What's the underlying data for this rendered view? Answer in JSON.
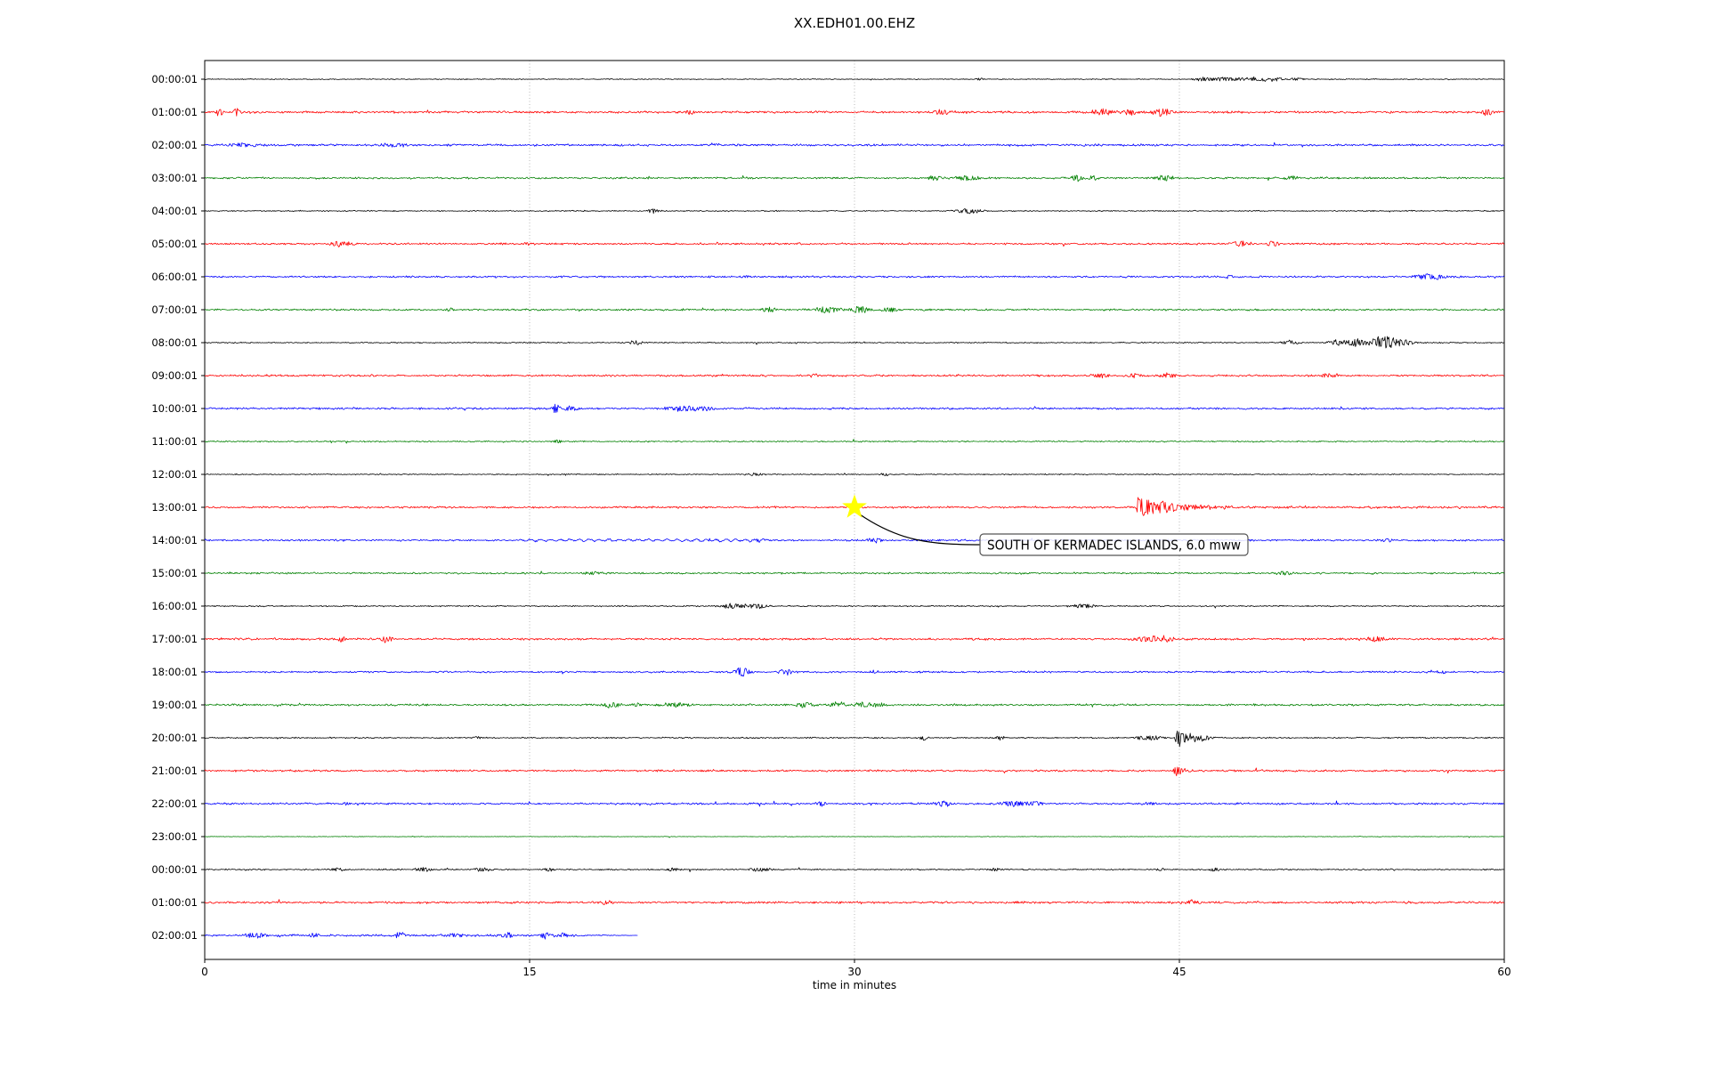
{
  "chart_data": {
    "type": "line",
    "subtype": "seismic-helicorder-dayplot",
    "title": "XX.EDH01.00.EHZ",
    "xlabel": "time in minutes",
    "xlim": [
      0,
      60
    ],
    "x_ticks": [
      0,
      15,
      30,
      45,
      60
    ],
    "grid_minutes": [
      15,
      30,
      45
    ],
    "grid_color": "#b0b0b0",
    "trace_color_cycle": [
      "#000000",
      "#ff0000",
      "#0000ff",
      "#008000"
    ],
    "rows": [
      {
        "label": "00:00:01",
        "color": "#000000",
        "amp": 0.7,
        "events": [
          {
            "t": 35.8,
            "a": 1.5,
            "w": 0.15
          },
          {
            "t": 46.0,
            "a": 1.8,
            "w": 0.3
          },
          {
            "t": 47.2,
            "a": 2.2,
            "w": 0.7
          },
          {
            "t": 48.6,
            "a": 2.2,
            "w": 0.5
          },
          {
            "t": 49.4,
            "a": 1.8,
            "w": 0.3
          },
          {
            "t": 50.4,
            "a": 1.8,
            "w": 0.25
          }
        ]
      },
      {
        "label": "01:00:01",
        "color": "#ff0000",
        "amp": 1.7,
        "events": [
          {
            "t": 0.65,
            "a": 5,
            "w": 0.12
          },
          {
            "t": 1.5,
            "a": 4.5,
            "w": 0.12
          },
          {
            "t": 22.4,
            "a": 2.5,
            "w": 0.15
          },
          {
            "t": 34.0,
            "a": 2.5,
            "w": 0.25
          },
          {
            "t": 41.5,
            "a": 3.5,
            "w": 0.4
          },
          {
            "t": 42.7,
            "a": 3,
            "w": 0.25
          },
          {
            "t": 44.2,
            "a": 4.5,
            "w": 0.35
          },
          {
            "t": 59.2,
            "a": 4,
            "w": 0.2
          }
        ]
      },
      {
        "label": "02:00:01",
        "color": "#0000ff",
        "amp": 1.6,
        "events": [
          {
            "t": 1.8,
            "a": 2.2,
            "w": 0.5
          },
          {
            "t": 8.8,
            "a": 2,
            "w": 0.4
          },
          {
            "t": 23.5,
            "a": 1.8,
            "w": 0.2
          }
        ]
      },
      {
        "label": "03:00:01",
        "color": "#008000",
        "amp": 1.4,
        "events": [
          {
            "t": 33.7,
            "a": 3,
            "w": 0.25
          },
          {
            "t": 35.2,
            "a": 3,
            "w": 0.4
          },
          {
            "t": 40.3,
            "a": 3.5,
            "w": 0.2
          },
          {
            "t": 41.0,
            "a": 3,
            "w": 0.15
          },
          {
            "t": 44.3,
            "a": 3.5,
            "w": 0.3
          },
          {
            "t": 50.2,
            "a": 2,
            "w": 0.2
          }
        ]
      },
      {
        "label": "04:00:01",
        "color": "#000000",
        "amp": 0.9,
        "events": [
          {
            "t": 20.7,
            "a": 2.5,
            "w": 0.2
          },
          {
            "t": 35.3,
            "a": 2.8,
            "w": 0.45
          }
        ]
      },
      {
        "label": "05:00:01",
        "color": "#ff0000",
        "amp": 1.4,
        "events": [
          {
            "t": 6.3,
            "a": 2.8,
            "w": 0.35
          },
          {
            "t": 14.9,
            "a": 2,
            "w": 0.15
          },
          {
            "t": 47.8,
            "a": 2.8,
            "w": 0.35
          },
          {
            "t": 49.3,
            "a": 3,
            "w": 0.2
          }
        ]
      },
      {
        "label": "06:00:01",
        "color": "#0000ff",
        "amp": 1.4,
        "events": [
          {
            "t": 24.9,
            "a": 2,
            "w": 0.15
          },
          {
            "t": 47.3,
            "a": 2,
            "w": 0.15
          },
          {
            "t": 56.6,
            "a": 3.5,
            "w": 0.5
          }
        ]
      },
      {
        "label": "07:00:01",
        "color": "#008000",
        "amp": 1.4,
        "events": [
          {
            "t": 11.3,
            "a": 2,
            "w": 0.15
          },
          {
            "t": 26.0,
            "a": 3,
            "w": 0.25
          },
          {
            "t": 28.8,
            "a": 3.8,
            "w": 0.4
          },
          {
            "t": 30.3,
            "a": 3.3,
            "w": 0.35
          },
          {
            "t": 31.6,
            "a": 2.8,
            "w": 0.25
          }
        ]
      },
      {
        "label": "08:00:01",
        "color": "#000000",
        "amp": 0.9,
        "events": [
          {
            "t": 19.9,
            "a": 2.8,
            "w": 0.2
          },
          {
            "t": 50.1,
            "a": 2.8,
            "w": 0.25
          },
          {
            "t": 52.3,
            "a": 2.8,
            "w": 0.35
          },
          {
            "t": 53.2,
            "a": 4.5,
            "w": 0.4
          },
          {
            "t": 54.4,
            "a": 7.5,
            "w": 0.4
          },
          {
            "t": 55.2,
            "a": 3.5,
            "w": 0.5
          }
        ]
      },
      {
        "label": "09:00:01",
        "color": "#ff0000",
        "amp": 1.5,
        "events": [
          {
            "t": 28.1,
            "a": 2,
            "w": 0.15
          },
          {
            "t": 41.4,
            "a": 2.8,
            "w": 0.3
          },
          {
            "t": 42.9,
            "a": 2.5,
            "w": 0.25
          },
          {
            "t": 44.5,
            "a": 2.8,
            "w": 0.3
          },
          {
            "t": 51.9,
            "a": 2.8,
            "w": 0.3
          }
        ]
      },
      {
        "label": "10:00:01",
        "color": "#0000ff",
        "amp": 1.5,
        "events": [
          {
            "t": 16.2,
            "a": 5.5,
            "w": 0.12
          },
          {
            "t": 16.9,
            "a": 2.8,
            "w": 0.25
          },
          {
            "t": 22.1,
            "a": 3.2,
            "w": 0.6
          },
          {
            "t": 23.1,
            "a": 2.8,
            "w": 0.25
          }
        ]
      },
      {
        "label": "11:00:01",
        "color": "#008000",
        "amp": 1.0,
        "events": [
          {
            "t": 16.3,
            "a": 1.8,
            "w": 0.15
          }
        ]
      },
      {
        "label": "12:00:01",
        "color": "#000000",
        "amp": 0.8,
        "events": [
          {
            "t": 25.4,
            "a": 1.8,
            "w": 0.25
          },
          {
            "t": 31.4,
            "a": 1.8,
            "w": 0.15
          }
        ]
      },
      {
        "label": "13:00:01",
        "color": "#ff0000",
        "amp": 1.5,
        "events": [
          {
            "t": 43.1,
            "a": 13,
            "w": 1.6,
            "type": "decay"
          }
        ],
        "tail": {
          "from": 43,
          "to": 60,
          "amp_start": 1.4,
          "amp_end": 0.5
        }
      },
      {
        "label": "14:00:01",
        "color": "#0000ff",
        "amp": 1.4,
        "wiggle": {
          "from": 14.5,
          "to": 26,
          "amp": 1.1,
          "period": 0.45
        },
        "events": [
          {
            "t": 25.6,
            "a": 2,
            "w": 0.15
          },
          {
            "t": 31.0,
            "a": 2.5,
            "w": 0.25
          },
          {
            "t": 54.6,
            "a": 2,
            "w": 0.25
          }
        ]
      },
      {
        "label": "15:00:01",
        "color": "#008000",
        "amp": 1.3,
        "events": [
          {
            "t": 18.0,
            "a": 2,
            "w": 0.35
          },
          {
            "t": 49.9,
            "a": 2.5,
            "w": 0.25
          }
        ]
      },
      {
        "label": "16:00:01",
        "color": "#000000",
        "amp": 1.0,
        "events": [
          {
            "t": 24.4,
            "a": 2.8,
            "w": 0.45
          },
          {
            "t": 25.5,
            "a": 3.2,
            "w": 0.35
          },
          {
            "t": 40.6,
            "a": 2.3,
            "w": 0.4
          }
        ]
      },
      {
        "label": "17:00:01",
        "color": "#ff0000",
        "amp": 1.6,
        "events": [
          {
            "t": 6.3,
            "a": 3.5,
            "w": 0.15
          },
          {
            "t": 8.4,
            "a": 4,
            "w": 0.18
          },
          {
            "t": 43.6,
            "a": 3.5,
            "w": 0.5
          },
          {
            "t": 44.4,
            "a": 2.8,
            "w": 0.25
          },
          {
            "t": 54.1,
            "a": 2.8,
            "w": 0.3
          }
        ]
      },
      {
        "label": "18:00:01",
        "color": "#0000ff",
        "amp": 1.4,
        "events": [
          {
            "t": 24.8,
            "a": 5,
            "w": 0.25
          },
          {
            "t": 26.9,
            "a": 2.8,
            "w": 0.3
          },
          {
            "t": 30.9,
            "a": 2,
            "w": 0.15
          },
          {
            "t": 57.1,
            "a": 2,
            "w": 0.15
          }
        ]
      },
      {
        "label": "19:00:01",
        "color": "#008000",
        "amp": 1.5,
        "events": [
          {
            "t": 18.8,
            "a": 3.5,
            "w": 0.3
          },
          {
            "t": 20.0,
            "a": 2.5,
            "w": 0.2
          },
          {
            "t": 21.8,
            "a": 2.2,
            "w": 0.5
          },
          {
            "t": 27.7,
            "a": 3.2,
            "w": 0.25
          },
          {
            "t": 29.2,
            "a": 2.8,
            "w": 0.3
          },
          {
            "t": 30.4,
            "a": 3.2,
            "w": 0.3
          },
          {
            "t": 31.1,
            "a": 2.8,
            "w": 0.25
          }
        ]
      },
      {
        "label": "20:00:01",
        "color": "#000000",
        "amp": 1.0,
        "events": [
          {
            "t": 12.6,
            "a": 1.8,
            "w": 0.15
          },
          {
            "t": 33.2,
            "a": 2.8,
            "w": 0.15
          },
          {
            "t": 36.7,
            "a": 2.3,
            "w": 0.15
          },
          {
            "t": 43.6,
            "a": 2.8,
            "w": 0.5
          },
          {
            "t": 44.9,
            "a": 13,
            "w": 0.5,
            "type": "decay"
          },
          {
            "t": 45.9,
            "a": 2.8,
            "w": 0.4
          }
        ]
      },
      {
        "label": "21:00:01",
        "color": "#ff0000",
        "amp": 1.5,
        "events": [
          {
            "t": 44.8,
            "a": 8.5,
            "w": 0.35,
            "type": "decay"
          }
        ]
      },
      {
        "label": "22:00:01",
        "color": "#0000ff",
        "amp": 1.5,
        "events": [
          {
            "t": 6.6,
            "a": 2,
            "w": 0.15
          },
          {
            "t": 28.5,
            "a": 2,
            "w": 0.2
          },
          {
            "t": 34.1,
            "a": 2.8,
            "w": 0.35
          },
          {
            "t": 37.4,
            "a": 3.2,
            "w": 0.5
          },
          {
            "t": 38.4,
            "a": 2.8,
            "w": 0.25
          },
          {
            "t": 43.6,
            "a": 2.2,
            "w": 0.2
          }
        ]
      },
      {
        "label": "23:00:01",
        "color": "#008000",
        "amp": 0.45,
        "events": []
      },
      {
        "label": "00:00:01",
        "color": "#000000",
        "amp": 1.0,
        "events": [
          {
            "t": 6.1,
            "a": 1.8,
            "w": 0.25
          },
          {
            "t": 10.1,
            "a": 2.3,
            "w": 0.3
          },
          {
            "t": 12.8,
            "a": 2.3,
            "w": 0.3
          },
          {
            "t": 15.9,
            "a": 2.3,
            "w": 0.15
          },
          {
            "t": 21.6,
            "a": 1.8,
            "w": 0.25
          },
          {
            "t": 25.6,
            "a": 2.3,
            "w": 0.35
          },
          {
            "t": 36.5,
            "a": 1.8,
            "w": 0.2
          },
          {
            "t": 44.1,
            "a": 1.8,
            "w": 0.15
          },
          {
            "t": 46.6,
            "a": 2.3,
            "w": 0.15
          }
        ]
      },
      {
        "label": "01:00:01",
        "color": "#ff0000",
        "amp": 1.7,
        "events": [
          {
            "t": 18.6,
            "a": 2.3,
            "w": 0.25
          },
          {
            "t": 45.6,
            "a": 2.3,
            "w": 0.25
          }
        ]
      },
      {
        "label": "02:00:01",
        "color": "#0000ff",
        "amp": 1.7,
        "end": 20,
        "taper": {
          "from": 16.8,
          "to": 20
        },
        "events": [
          {
            "t": 2.3,
            "a": 2.8,
            "w": 0.35
          },
          {
            "t": 5.1,
            "a": 2.3,
            "w": 0.2
          },
          {
            "t": 9.0,
            "a": 4,
            "w": 0.15
          },
          {
            "t": 11.6,
            "a": 2.5,
            "w": 0.3
          },
          {
            "t": 14.0,
            "a": 2.8,
            "w": 0.2
          },
          {
            "t": 15.7,
            "a": 4.5,
            "w": 0.12
          },
          {
            "t": 16.6,
            "a": 2.8,
            "w": 0.2
          }
        ]
      }
    ],
    "event_marker": {
      "row_index": 13,
      "row_label": "13:00:01",
      "minute": 30,
      "shape": "star",
      "color": "#ffff00",
      "annotation_text": "SOUTH OF KERMADEC ISLANDS, 6.0 mww"
    }
  }
}
